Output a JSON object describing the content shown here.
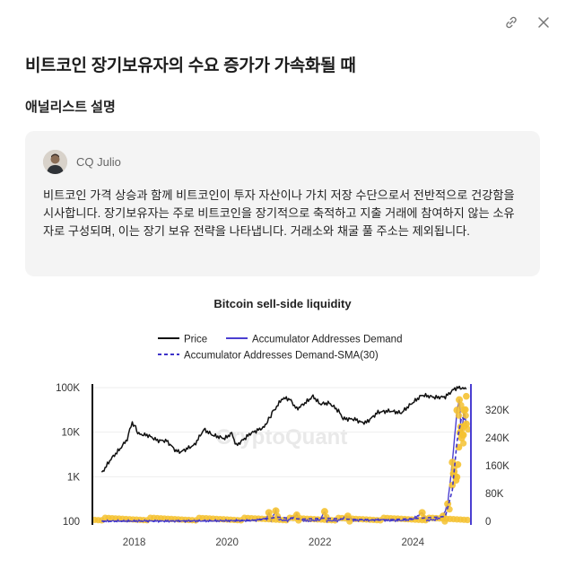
{
  "header": {
    "title": "비트코인 장기보유자의 수요 증가가 가속화될 때",
    "section_label": "애널리스트 설명",
    "link_icon": "link-icon",
    "close_icon": "close-icon"
  },
  "analyst": {
    "name": "CQ Julio",
    "avatar_icon": "avatar",
    "description": "비트코인 가격 상승과 함께 비트코인이 투자 자산이나 가치 저장 수단으로서 전반적으로 건강함을 시사합니다. 장기보유자는 주로 비트코인을 장기적으로 축적하고 지출 거래에 참여하지 않는 소유자로 구성되며, 이는 장기 보유 전략을 나타냅니다. 거래소와 채굴 풀 주소는 제외됩니다."
  },
  "chart_data": {
    "type": "line",
    "title": "Bitcoin sell-side liquidity",
    "watermark": "CryptoQuant",
    "legend_position": "top-center",
    "x_ticks": [
      "2018",
      "2020",
      "2022",
      "2024"
    ],
    "x_range": [
      2017.1,
      2025.25
    ],
    "y_left": {
      "scale": "log",
      "ticks": [
        "100",
        "1K",
        "10K",
        "100K"
      ],
      "range": [
        100,
        100000
      ]
    },
    "y_right": {
      "scale": "linear",
      "ticks": [
        "0",
        "80K",
        "160K",
        "240K",
        "320K"
      ],
      "range": [
        0,
        385000
      ]
    },
    "colors": {
      "price": "#111111",
      "demand": "#4b3fd1",
      "sma": "#3d33c9",
      "dots": "#f5c231"
    },
    "series": [
      {
        "name": "Price",
        "axis": "left",
        "style": "solid",
        "points": [
          [
            2017.3,
            1200
          ],
          [
            2017.5,
            2500
          ],
          [
            2017.7,
            4300
          ],
          [
            2017.85,
            7000
          ],
          [
            2017.96,
            17000
          ],
          [
            2018.1,
            9000
          ],
          [
            2018.3,
            8500
          ],
          [
            2018.5,
            6500
          ],
          [
            2018.7,
            6400
          ],
          [
            2018.9,
            3800
          ],
          [
            2019.0,
            3600
          ],
          [
            2019.3,
            5200
          ],
          [
            2019.5,
            11500
          ],
          [
            2019.7,
            8500
          ],
          [
            2019.95,
            7200
          ],
          [
            2020.1,
            9500
          ],
          [
            2020.2,
            5000
          ],
          [
            2020.5,
            9300
          ],
          [
            2020.8,
            13000
          ],
          [
            2020.99,
            29000
          ],
          [
            2021.2,
            58000
          ],
          [
            2021.35,
            55000
          ],
          [
            2021.5,
            33000
          ],
          [
            2021.7,
            47000
          ],
          [
            2021.85,
            64000
          ],
          [
            2022.0,
            43000
          ],
          [
            2022.2,
            45000
          ],
          [
            2022.4,
            30000
          ],
          [
            2022.5,
            20000
          ],
          [
            2022.75,
            19500
          ],
          [
            2022.9,
            16500
          ],
          [
            2023.0,
            16600
          ],
          [
            2023.25,
            28000
          ],
          [
            2023.5,
            30000
          ],
          [
            2023.75,
            27000
          ],
          [
            2023.95,
            42000
          ],
          [
            2024.2,
            68000
          ],
          [
            2024.5,
            60000
          ],
          [
            2024.7,
            62000
          ],
          [
            2024.9,
            95000
          ],
          [
            2025.0,
            100000
          ],
          [
            2025.15,
            92000
          ]
        ]
      },
      {
        "name": "Accumulator Addresses Demand",
        "axis": "right",
        "style": "solid",
        "points": [
          [
            2017.3,
            300
          ],
          [
            2018.0,
            1000
          ],
          [
            2019.0,
            800
          ],
          [
            2020.0,
            1500
          ],
          [
            2020.6,
            3000
          ],
          [
            2020.85,
            8000
          ],
          [
            2020.9,
            25000
          ],
          [
            2020.95,
            3000
          ],
          [
            2021.05,
            30000
          ],
          [
            2021.1,
            5000
          ],
          [
            2021.3,
            2000
          ],
          [
            2021.5,
            18000
          ],
          [
            2021.6,
            3000
          ],
          [
            2021.75,
            1000
          ],
          [
            2022.0,
            4000
          ],
          [
            2022.1,
            28000
          ],
          [
            2022.15,
            2000
          ],
          [
            2022.4,
            2000
          ],
          [
            2022.6,
            15000
          ],
          [
            2022.7,
            2000
          ],
          [
            2022.9,
            4000
          ],
          [
            2023.1,
            3000
          ],
          [
            2023.3,
            5000
          ],
          [
            2023.5,
            2000
          ],
          [
            2023.8,
            3000
          ],
          [
            2024.0,
            6000
          ],
          [
            2024.2,
            25000
          ],
          [
            2024.3,
            3000
          ],
          [
            2024.5,
            5000
          ],
          [
            2024.65,
            15000
          ],
          [
            2024.75,
            50000
          ],
          [
            2024.85,
            170000
          ],
          [
            2024.95,
            320000
          ],
          [
            2025.0,
            350000
          ],
          [
            2025.05,
            240000
          ],
          [
            2025.1,
            320000
          ],
          [
            2025.15,
            280000
          ]
        ]
      },
      {
        "name": "Accumulator Addresses Demand-SMA(30)",
        "axis": "right",
        "style": "dashed",
        "points": [
          [
            2017.3,
            300
          ],
          [
            2019.0,
            700
          ],
          [
            2020.5,
            1800
          ],
          [
            2020.95,
            9000
          ],
          [
            2021.1,
            12000
          ],
          [
            2021.6,
            6000
          ],
          [
            2022.1,
            9000
          ],
          [
            2022.6,
            6000
          ],
          [
            2023.3,
            3500
          ],
          [
            2024.2,
            9000
          ],
          [
            2024.7,
            14000
          ],
          [
            2024.85,
            90000
          ],
          [
            2024.95,
            230000
          ],
          [
            2025.05,
            300000
          ],
          [
            2025.15,
            290000
          ]
        ]
      }
    ]
  }
}
